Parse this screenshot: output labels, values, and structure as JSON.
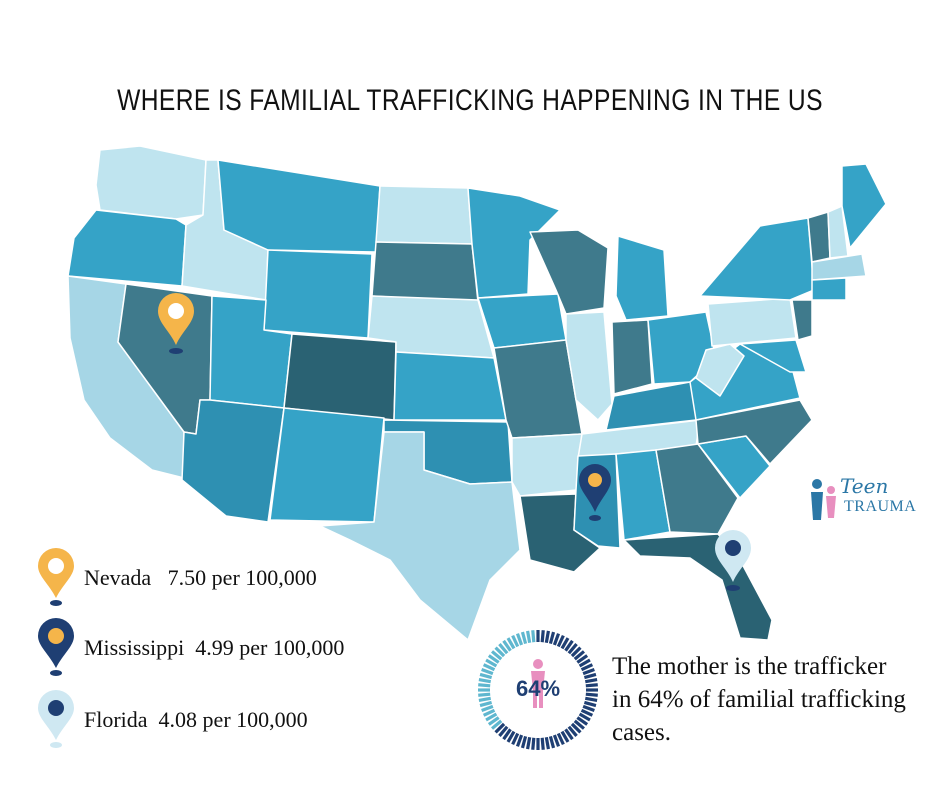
{
  "title": "WHERE IS FAMILIAL TRAFFICKING HAPPENING IN THE US",
  "colors": {
    "lightest": "#bfe4ef",
    "light": "#a6d6e6",
    "mid": "#35a3c7",
    "mid2": "#2e90b2",
    "dark": "#3f7a8c",
    "darker": "#2a6273",
    "pin_orange": "#f5b54a",
    "pin_navy": "#1f3f73",
    "pin_pale": "#cfe8f2",
    "ring_light": "#5fb7cf",
    "ring_dark": "#1f3f73",
    "person_pink": "#e88fbf",
    "logo_blue": "#2b77a6"
  },
  "map_pins": [
    {
      "state": "Nevada",
      "icon": "map-pin-orange-icon"
    },
    {
      "state": "Mississippi",
      "icon": "map-pin-navy-icon"
    },
    {
      "state": "Florida",
      "icon": "map-pin-pale-icon"
    }
  ],
  "legend": [
    {
      "label": "Nevada   7.50 per 100,000",
      "icon": "map-pin-orange-icon"
    },
    {
      "label": "Mississippi  4.99 per 100,000",
      "icon": "map-pin-navy-icon"
    },
    {
      "label": "Florida  4.08 per 100,000",
      "icon": "map-pin-pale-icon"
    }
  ],
  "logo": {
    "line1": "Teen",
    "line2": "TRAUMA"
  },
  "stat": {
    "percent_label": "64%",
    "percent": 64,
    "text": "The mother is the trafficker in 64% of familial trafficking cases."
  }
}
